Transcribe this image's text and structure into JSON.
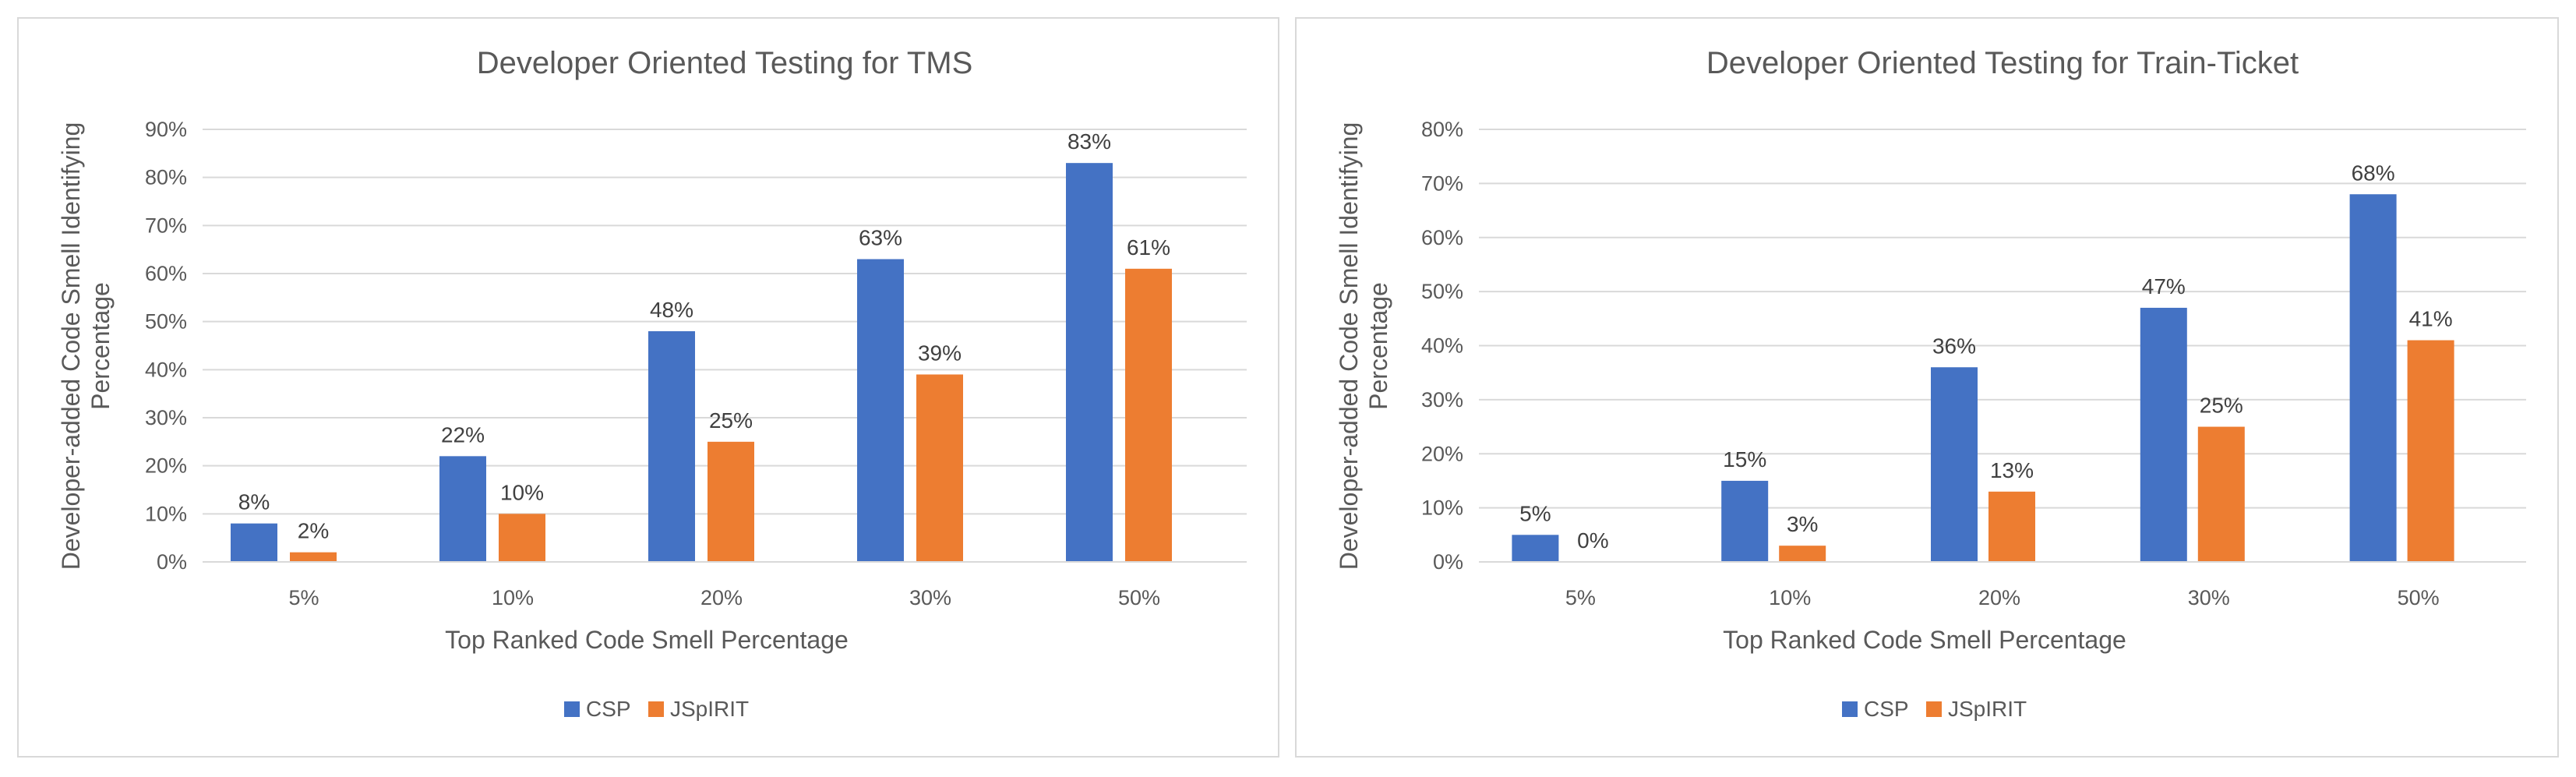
{
  "chart_data": [
    {
      "type": "bar",
      "title": "Developer Oriented Testing for TMS",
      "xlabel": "Top Ranked Code Smell Percentage",
      "ylabel": [
        "Developer-added Code Smell Identifying",
        "Percentage"
      ],
      "categories": [
        "5%",
        "10%",
        "20%",
        "30%",
        "50%"
      ],
      "series": [
        {
          "name": "CSP",
          "color": "#4472c4",
          "values": [
            8,
            22,
            48,
            63,
            83
          ],
          "labels": [
            "8%",
            "22%",
            "48%",
            "63%",
            "83%"
          ]
        },
        {
          "name": "JSpIRIT",
          "color": "#ed7d31",
          "values": [
            2,
            10,
            25,
            39,
            61
          ],
          "labels": [
            "2%",
            "10%",
            "25%",
            "39%",
            "61%"
          ]
        }
      ],
      "ylim": [
        0,
        90
      ],
      "yticks": [
        "0%",
        "10%",
        "20%",
        "30%",
        "40%",
        "50%",
        "60%",
        "70%",
        "80%",
        "90%"
      ],
      "grid": true,
      "legend": "bottom-center"
    },
    {
      "type": "bar",
      "title": "Developer Oriented Testing for Train-Ticket",
      "xlabel": "Top Ranked Code Smell Percentage",
      "ylabel": [
        "Developer-added Code Smell Identifying",
        "Percentage"
      ],
      "categories": [
        "5%",
        "10%",
        "20%",
        "30%",
        "50%"
      ],
      "series": [
        {
          "name": "CSP",
          "color": "#4472c4",
          "values": [
            5,
            15,
            36,
            47,
            68
          ],
          "labels": [
            "5%",
            "15%",
            "36%",
            "47%",
            "68%"
          ]
        },
        {
          "name": "JSpIRIT",
          "color": "#ed7d31",
          "values": [
            0,
            3,
            13,
            25,
            41
          ],
          "labels": [
            "0%",
            "3%",
            "13%",
            "25%",
            "41%"
          ]
        }
      ],
      "ylim": [
        0,
        80
      ],
      "yticks": [
        "0%",
        "10%",
        "20%",
        "30%",
        "40%",
        "50%",
        "60%",
        "70%",
        "80%"
      ],
      "grid": true,
      "legend": "bottom-center"
    }
  ]
}
